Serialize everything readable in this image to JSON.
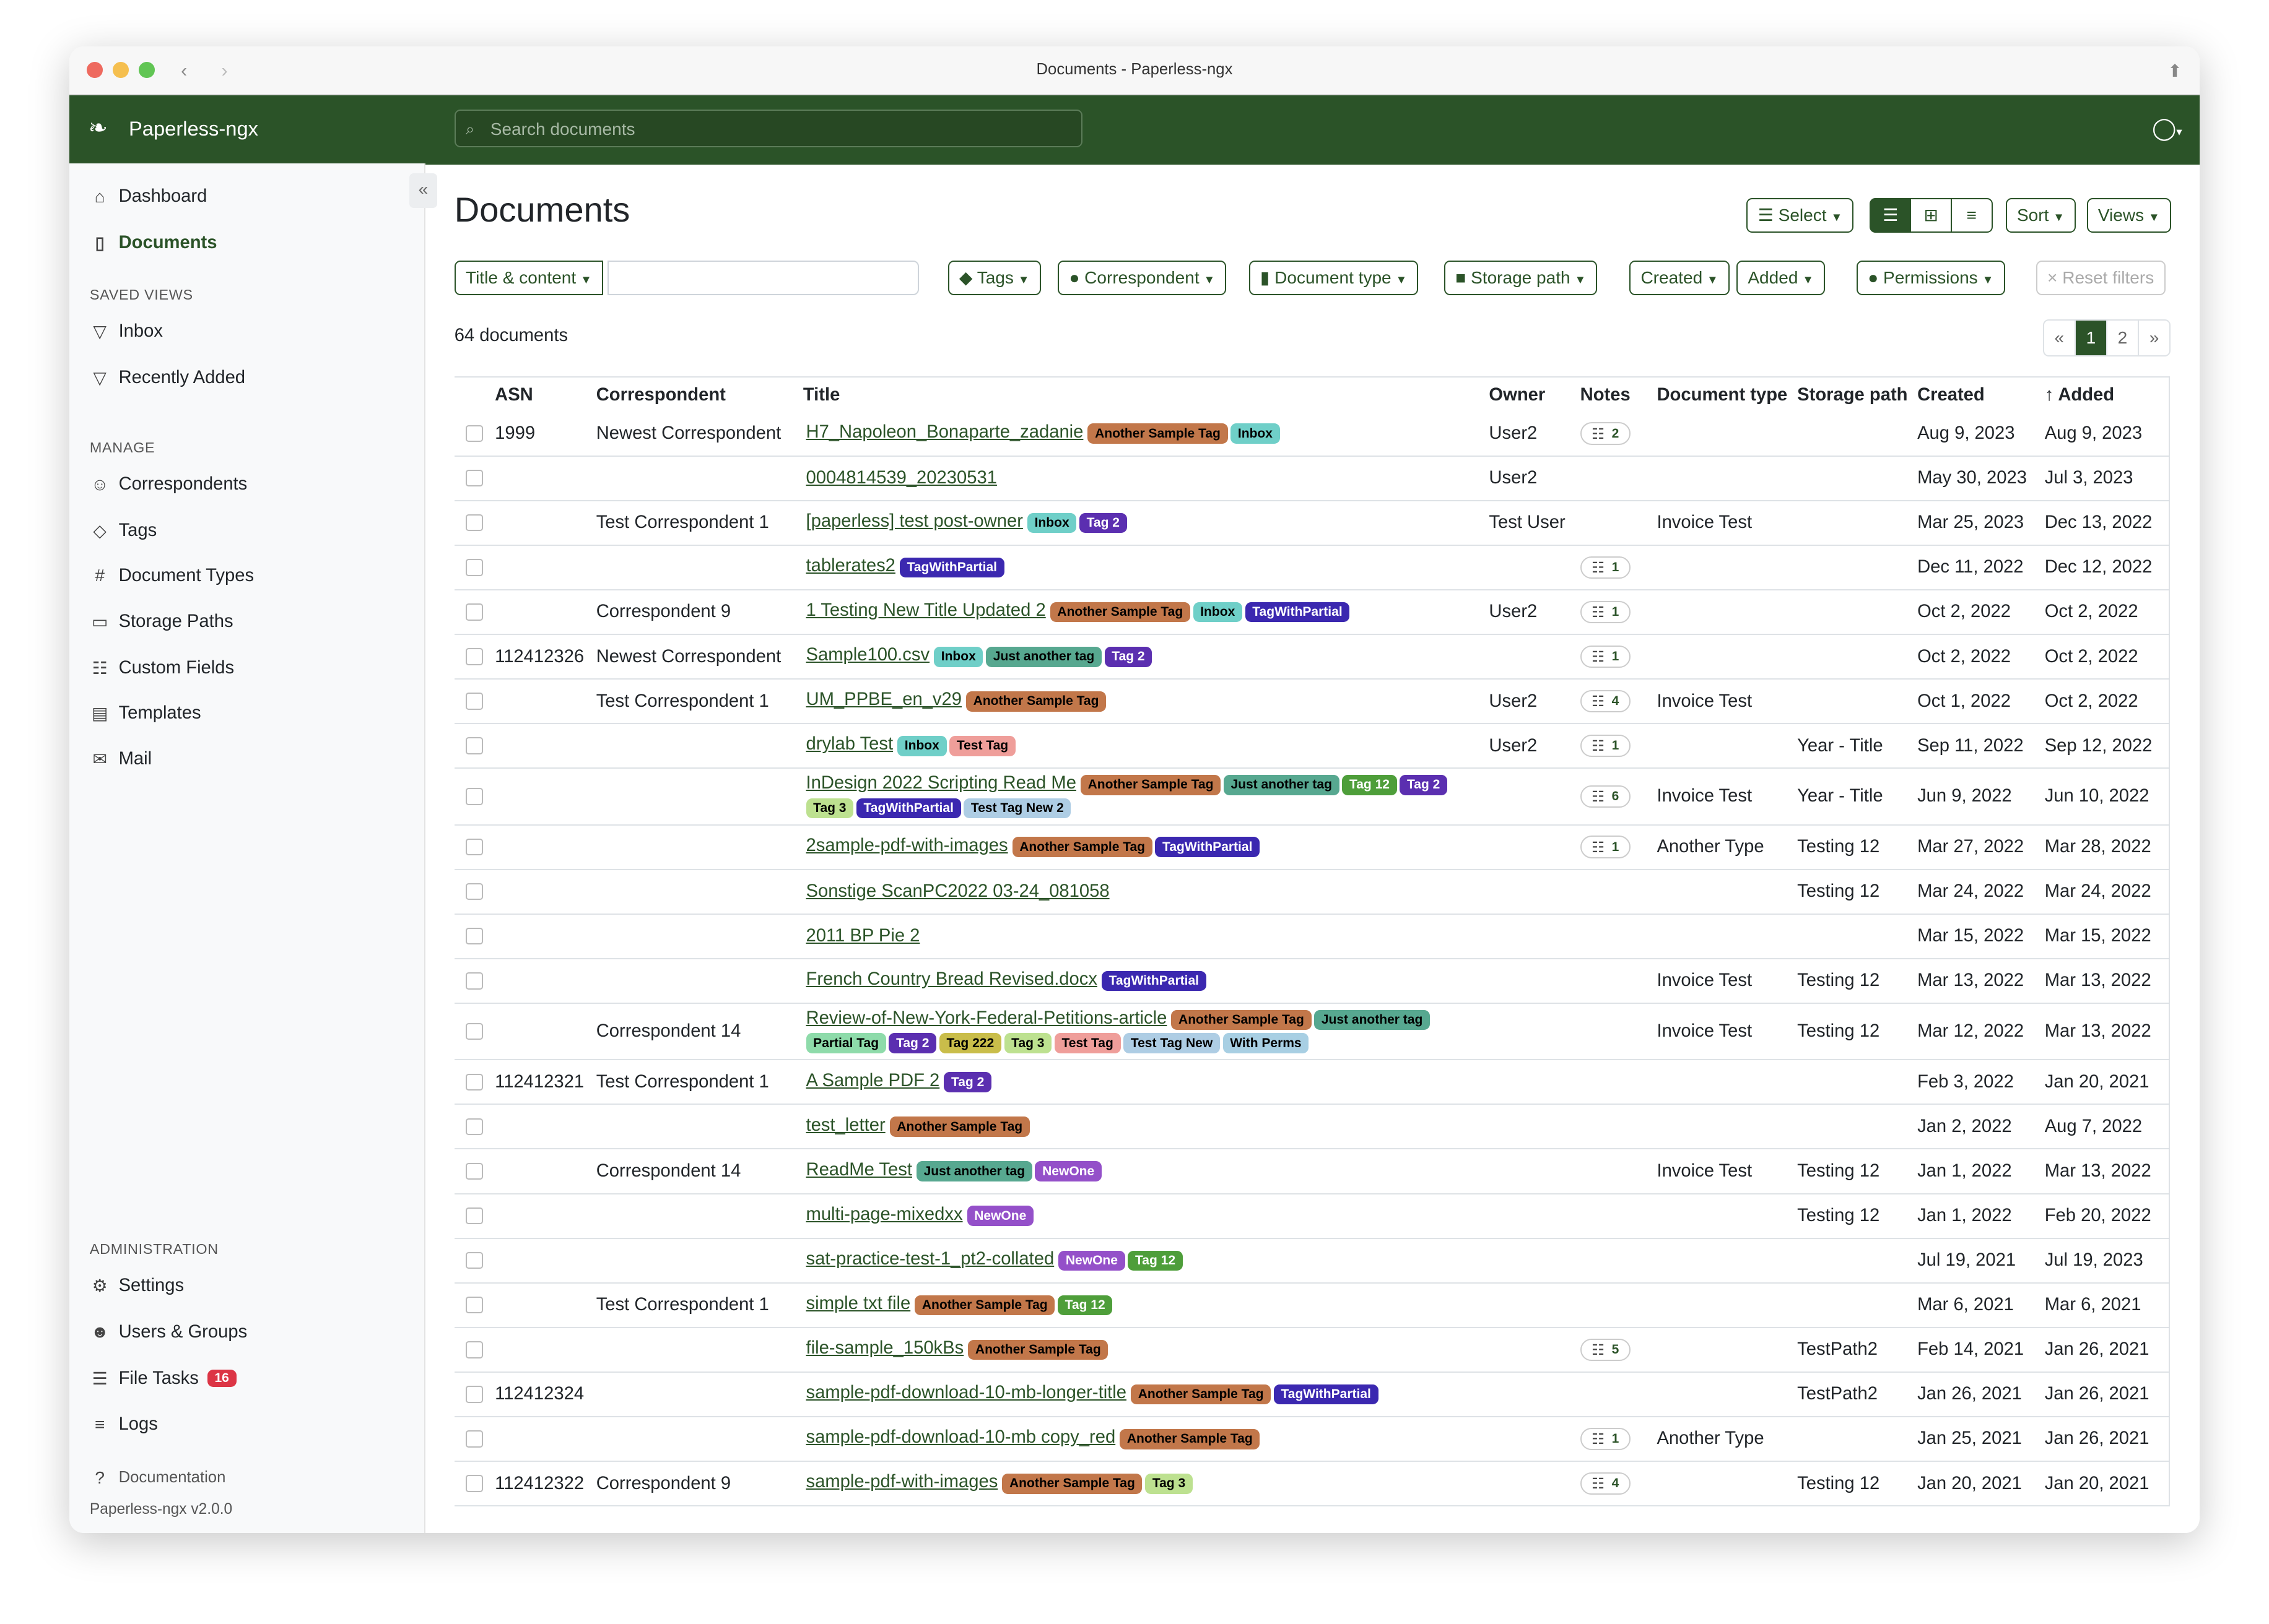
{
  "window": {
    "title": "Documents - Paperless-ngx"
  },
  "app": {
    "name": "Paperless-ngx",
    "search_placeholder": "Search documents"
  },
  "sidebar": {
    "top": [
      {
        "label": "Dashboard",
        "icon": "house-icon"
      },
      {
        "label": "Documents",
        "icon": "file-icon",
        "active": true
      }
    ],
    "saved_views_heading": "SAVED VIEWS",
    "saved_views": [
      {
        "label": "Inbox",
        "icon": "funnel-icon"
      },
      {
        "label": "Recently Added",
        "icon": "funnel-icon"
      }
    ],
    "manage_heading": "MANAGE",
    "manage": [
      {
        "label": "Correspondents",
        "icon": "person-icon"
      },
      {
        "label": "Tags",
        "icon": "tag-icon"
      },
      {
        "label": "Document Types",
        "icon": "hash-icon"
      },
      {
        "label": "Storage Paths",
        "icon": "folder-icon"
      },
      {
        "label": "Custom Fields",
        "icon": "ui-radios-icon"
      },
      {
        "label": "Templates",
        "icon": "file-text-icon"
      },
      {
        "label": "Mail",
        "icon": "envelope-icon"
      }
    ],
    "admin_heading": "ADMINISTRATION",
    "admin": [
      {
        "label": "Settings",
        "icon": "gear-icon"
      },
      {
        "label": "Users & Groups",
        "icon": "people-icon"
      },
      {
        "label": "File Tasks",
        "icon": "list-icon",
        "badge": "16"
      },
      {
        "label": "Logs",
        "icon": "text-icon"
      }
    ],
    "documentation": "Documentation",
    "version": "Paperless-ngx v2.0.0"
  },
  "page": {
    "title": "Documents",
    "count": "64 documents"
  },
  "toolbar": {
    "select": "Select",
    "sort": "Sort",
    "views": "Views",
    "view_mode": "table"
  },
  "filters": {
    "title_content": "Title & content",
    "text_value": "",
    "tags": "Tags",
    "correspondent": "Correspondent",
    "document_type": "Document type",
    "storage_path": "Storage path",
    "created": "Created",
    "added": "Added",
    "permissions": "Permissions",
    "reset": "Reset filters"
  },
  "pagination": {
    "prev": "«",
    "pages": [
      "1",
      "2"
    ],
    "current": "1",
    "next": "»"
  },
  "columns": [
    "ASN",
    "Correspondent",
    "Title",
    "Owner",
    "Notes",
    "Document type",
    "Storage path",
    "Created",
    "Added"
  ],
  "sort": {
    "column": "Added",
    "direction": "ascending-arrow"
  },
  "tag_colors": {
    "Another Sample Tag": [
      "#c2774a",
      "#000"
    ],
    "Inbox": [
      "#6fcfc8",
      "#000"
    ],
    "Tag 2": [
      "#5b2fb0",
      "#fff"
    ],
    "TagWithPartial": [
      "#3b28b0",
      "#fff"
    ],
    "Just another tag": [
      "#57a890",
      "#000"
    ],
    "Tag 12": [
      "#4e9e3a",
      "#fff"
    ],
    "Tag 3": [
      "#bde190",
      "#000"
    ],
    "Test Tag": [
      "#ef9e9a",
      "#000"
    ],
    "Test Tag New": [
      "#aecde4",
      "#000"
    ],
    "Test Tag New 2": [
      "#aecde4",
      "#000"
    ],
    "With Perms": [
      "#a8cfe3",
      "#000"
    ],
    "Partial Tag": [
      "#8edbaa",
      "#000"
    ],
    "Tag 222": [
      "#c9bd4a",
      "#000"
    ],
    "NewOne": [
      "#9450c9",
      "#fff"
    ]
  },
  "rows": [
    {
      "asn": "1999",
      "corr": "Newest Correspondent",
      "title": "H7_Napoleon_Bonaparte_zadanie",
      "tags": [
        "Another Sample Tag",
        "Inbox"
      ],
      "owner": "User2",
      "notes": "2",
      "type": "",
      "path": "",
      "created": "Aug 9, 2023",
      "added": "Aug 9, 2023"
    },
    {
      "asn": "",
      "corr": "",
      "title": "0004814539_20230531",
      "tags": [],
      "owner": "User2",
      "notes": "",
      "type": "",
      "path": "",
      "created": "May 30, 2023",
      "added": "Jul 3, 2023"
    },
    {
      "asn": "",
      "corr": "Test Correspondent 1",
      "title": "[paperless] test post-owner",
      "tags": [
        "Inbox",
        "Tag 2"
      ],
      "owner": "Test User",
      "notes": "",
      "type": "Invoice Test",
      "path": "",
      "created": "Mar 25, 2023",
      "added": "Dec 13, 2022"
    },
    {
      "asn": "",
      "corr": "",
      "title": "tablerates2",
      "tags": [
        "TagWithPartial"
      ],
      "owner": "",
      "notes": "1",
      "type": "",
      "path": "",
      "created": "Dec 11, 2022",
      "added": "Dec 12, 2022"
    },
    {
      "asn": "",
      "corr": "Correspondent 9",
      "title": "1 Testing New Title Updated 2",
      "tags": [
        "Another Sample Tag",
        "Inbox",
        "TagWithPartial"
      ],
      "owner": "User2",
      "notes": "1",
      "type": "",
      "path": "",
      "created": "Oct 2, 2022",
      "added": "Oct 2, 2022"
    },
    {
      "asn": "112412326",
      "corr": "Newest Correspondent",
      "title": "Sample100.csv",
      "tags": [
        "Inbox",
        "Just another tag",
        "Tag 2"
      ],
      "owner": "",
      "notes": "1",
      "type": "",
      "path": "",
      "created": "Oct 2, 2022",
      "added": "Oct 2, 2022"
    },
    {
      "asn": "",
      "corr": "Test Correspondent 1",
      "title": "UM_PPBE_en_v29",
      "tags": [
        "Another Sample Tag"
      ],
      "owner": "User2",
      "notes": "4",
      "type": "Invoice Test",
      "path": "",
      "created": "Oct 1, 2022",
      "added": "Oct 2, 2022"
    },
    {
      "asn": "",
      "corr": "",
      "title": "drylab Test",
      "tags": [
        "Inbox",
        "Test Tag"
      ],
      "owner": "User2",
      "notes": "1",
      "type": "",
      "path": "Year - Title",
      "created": "Sep 11, 2022",
      "added": "Sep 12, 2022"
    },
    {
      "asn": "",
      "corr": "",
      "title": "InDesign 2022 Scripting Read Me",
      "tags": [
        "Another Sample Tag",
        "Just another tag",
        "Tag 12",
        "Tag 2",
        "Tag 3",
        "TagWithPartial",
        "Test Tag New 2"
      ],
      "owner": "",
      "notes": "6",
      "type": "Invoice Test",
      "path": "Year - Title",
      "created": "Jun 9, 2022",
      "added": "Jun 10, 2022"
    },
    {
      "asn": "",
      "corr": "",
      "title": "2sample-pdf-with-images",
      "tags": [
        "Another Sample Tag",
        "TagWithPartial"
      ],
      "owner": "",
      "notes": "1",
      "type": "Another Type",
      "path": "Testing 12",
      "created": "Mar 27, 2022",
      "added": "Mar 28, 2022"
    },
    {
      "asn": "",
      "corr": "",
      "title": "Sonstige ScanPC2022 03-24_081058",
      "tags": [],
      "owner": "",
      "notes": "",
      "type": "",
      "path": "Testing 12",
      "created": "Mar 24, 2022",
      "added": "Mar 24, 2022"
    },
    {
      "asn": "",
      "corr": "",
      "title": "2011 BP Pie 2",
      "tags": [],
      "owner": "",
      "notes": "",
      "type": "",
      "path": "",
      "created": "Mar 15, 2022",
      "added": "Mar 15, 2022"
    },
    {
      "asn": "",
      "corr": "",
      "title": "French Country Bread Revised.docx",
      "tags": [
        "TagWithPartial"
      ],
      "owner": "",
      "notes": "",
      "type": "Invoice Test",
      "path": "Testing 12",
      "created": "Mar 13, 2022",
      "added": "Mar 13, 2022"
    },
    {
      "asn": "",
      "corr": "Correspondent 14",
      "title": "Review-of-New-York-Federal-Petitions-article",
      "tags": [
        "Another Sample Tag",
        "Just another tag",
        "Partial Tag",
        "Tag 2",
        "Tag 222",
        "Tag 3",
        "Test Tag",
        "Test Tag New",
        "With Perms"
      ],
      "owner": "",
      "notes": "",
      "type": "Invoice Test",
      "path": "Testing 12",
      "created": "Mar 12, 2022",
      "added": "Mar 13, 2022"
    },
    {
      "asn": "112412321",
      "corr": "Test Correspondent 1",
      "title": "A Sample PDF 2",
      "tags": [
        "Tag 2"
      ],
      "owner": "",
      "notes": "",
      "type": "",
      "path": "",
      "created": "Feb 3, 2022",
      "added": "Jan 20, 2021"
    },
    {
      "asn": "",
      "corr": "",
      "title": "test_letter",
      "tags": [
        "Another Sample Tag"
      ],
      "owner": "",
      "notes": "",
      "type": "",
      "path": "",
      "created": "Jan 2, 2022",
      "added": "Aug 7, 2022"
    },
    {
      "asn": "",
      "corr": "Correspondent 14",
      "title": "ReadMe Test",
      "tags": [
        "Just another tag",
        "NewOne"
      ],
      "owner": "",
      "notes": "",
      "type": "Invoice Test",
      "path": "Testing 12",
      "created": "Jan 1, 2022",
      "added": "Mar 13, 2022"
    },
    {
      "asn": "",
      "corr": "",
      "title": "multi-page-mixedxx",
      "tags": [
        "NewOne"
      ],
      "owner": "",
      "notes": "",
      "type": "",
      "path": "Testing 12",
      "created": "Jan 1, 2022",
      "added": "Feb 20, 2022"
    },
    {
      "asn": "",
      "corr": "",
      "title": "sat-practice-test-1_pt2-collated",
      "tags": [
        "NewOne",
        "Tag 12"
      ],
      "owner": "",
      "notes": "",
      "type": "",
      "path": "",
      "created": "Jul 19, 2021",
      "added": "Jul 19, 2023"
    },
    {
      "asn": "",
      "corr": "Test Correspondent 1",
      "title": "simple txt file",
      "tags": [
        "Another Sample Tag",
        "Tag 12"
      ],
      "owner": "",
      "notes": "",
      "type": "",
      "path": "",
      "created": "Mar 6, 2021",
      "added": "Mar 6, 2021"
    },
    {
      "asn": "",
      "corr": "",
      "title": "file-sample_150kBs",
      "tags": [
        "Another Sample Tag"
      ],
      "owner": "",
      "notes": "5",
      "type": "",
      "path": "TestPath2",
      "created": "Feb 14, 2021",
      "added": "Jan 26, 2021"
    },
    {
      "asn": "112412324",
      "corr": "",
      "title": "sample-pdf-download-10-mb-longer-title",
      "tags": [
        "Another Sample Tag",
        "TagWithPartial"
      ],
      "owner": "",
      "notes": "",
      "type": "",
      "path": "TestPath2",
      "created": "Jan 26, 2021",
      "added": "Jan 26, 2021"
    },
    {
      "asn": "",
      "corr": "",
      "title": "sample-pdf-download-10-mb copy_red",
      "tags": [
        "Another Sample Tag"
      ],
      "owner": "",
      "notes": "1",
      "type": "Another Type",
      "path": "",
      "created": "Jan 25, 2021",
      "added": "Jan 26, 2021"
    },
    {
      "asn": "112412322",
      "corr": "Correspondent 9",
      "title": "sample-pdf-with-images",
      "tags": [
        "Another Sample Tag",
        "Tag 3"
      ],
      "owner": "",
      "notes": "4",
      "type": "",
      "path": "Testing 12",
      "created": "Jan 20, 2021",
      "added": "Jan 20, 2021"
    }
  ]
}
